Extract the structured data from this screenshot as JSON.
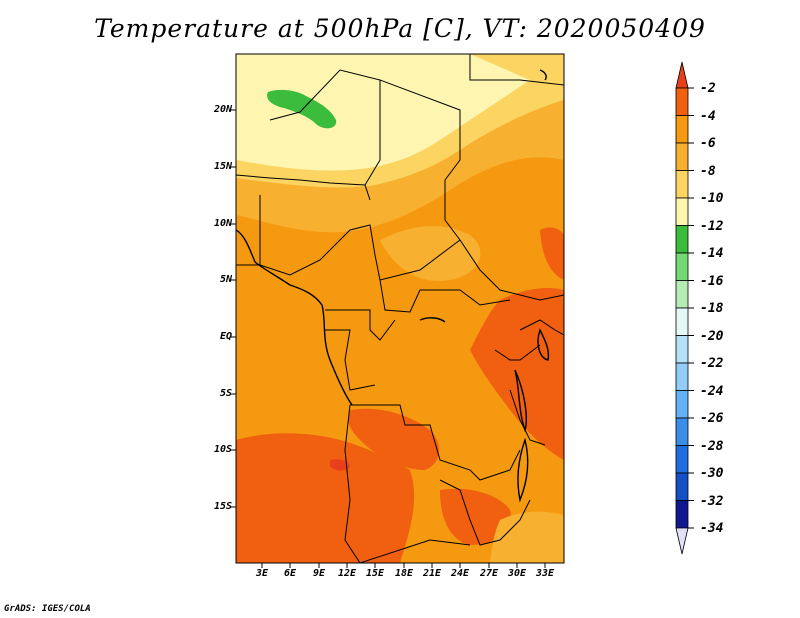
{
  "title": "Temperature at 500hPa [C], VT: 2020050409",
  "credit": "GrADS: IGES/COLA",
  "lat_labels": [
    "20N",
    "15N",
    "10N",
    "5N",
    "EQ",
    "5S",
    "10S",
    "15S"
  ],
  "lon_labels": [
    "3E",
    "6E",
    "9E",
    "12E",
    "15E",
    "18E",
    "21E",
    "24E",
    "27E",
    "30E",
    "33E"
  ],
  "colorbar": {
    "labels": [
      "-2",
      "-4",
      "-6",
      "-8",
      "-10",
      "-12",
      "-14",
      "-16",
      "-18",
      "-20",
      "-22",
      "-24",
      "-26",
      "-28",
      "-30",
      "-32",
      "-34"
    ],
    "colors": [
      "#e8401a",
      "#f06010",
      "#f59a10",
      "#f8b030",
      "#fbd462",
      "#fdf5b0",
      "#3cbc3c",
      "#74d874",
      "#b4ecb4",
      "#e4f8f8",
      "#b4e0f8",
      "#94ccf8",
      "#64b0f4",
      "#3a8ee8",
      "#1e6ee0",
      "#1450c4",
      "#101890",
      "#e0e0f8"
    ]
  }
}
